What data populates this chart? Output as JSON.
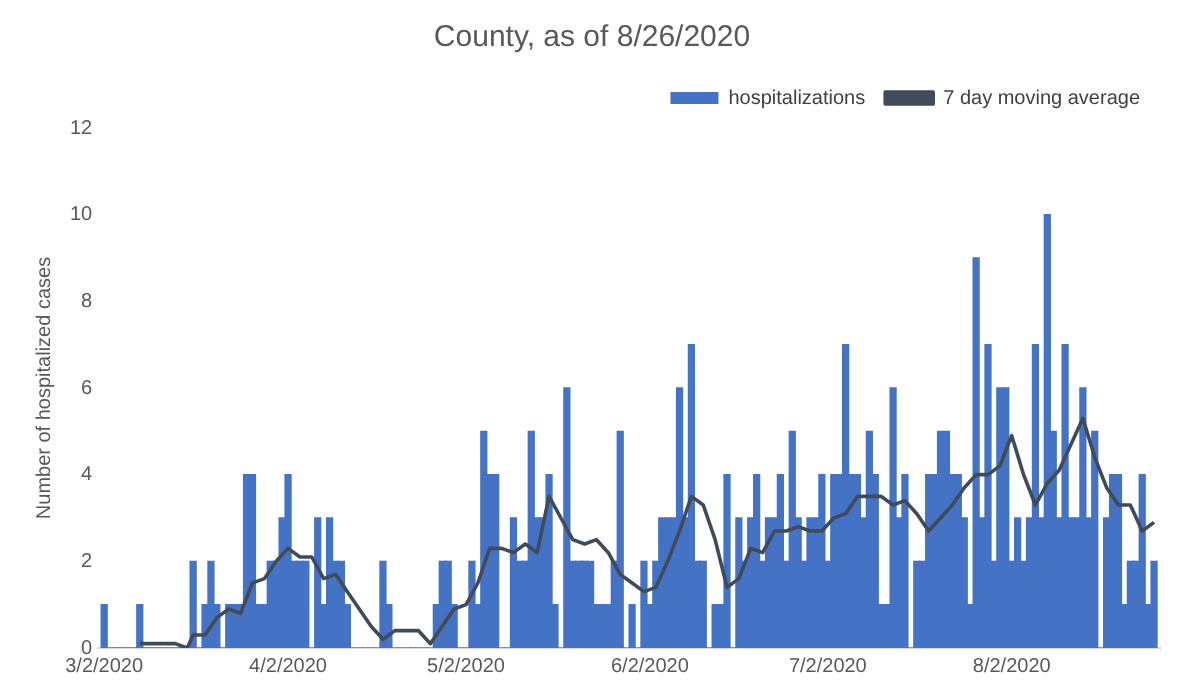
{
  "chart_data": {
    "type": "bar",
    "title": "County, as of 8/26/2020",
    "ylabel": "Number of hospitalized cases",
    "x": [
      "2020-03-02",
      "2020-03-03",
      "2020-03-04",
      "2020-03-05",
      "2020-03-06",
      "2020-03-07",
      "2020-03-08",
      "2020-03-09",
      "2020-03-10",
      "2020-03-11",
      "2020-03-12",
      "2020-03-13",
      "2020-03-14",
      "2020-03-15",
      "2020-03-16",
      "2020-03-17",
      "2020-03-18",
      "2020-03-19",
      "2020-03-20",
      "2020-03-21",
      "2020-03-22",
      "2020-03-23",
      "2020-03-24",
      "2020-03-25",
      "2020-03-26",
      "2020-03-27",
      "2020-03-28",
      "2020-03-29",
      "2020-03-30",
      "2020-03-31",
      "2020-04-01",
      "2020-04-02",
      "2020-04-03",
      "2020-04-04",
      "2020-04-05",
      "2020-04-06",
      "2020-04-07",
      "2020-04-08",
      "2020-04-09",
      "2020-04-10",
      "2020-04-11",
      "2020-04-12",
      "2020-04-13",
      "2020-04-14",
      "2020-04-15",
      "2020-04-16",
      "2020-04-17",
      "2020-04-18",
      "2020-04-19",
      "2020-04-20",
      "2020-04-21",
      "2020-04-22",
      "2020-04-23",
      "2020-04-24",
      "2020-04-25",
      "2020-04-26",
      "2020-04-27",
      "2020-04-28",
      "2020-04-29",
      "2020-04-30",
      "2020-05-01",
      "2020-05-02",
      "2020-05-03",
      "2020-05-04",
      "2020-05-05",
      "2020-05-06",
      "2020-05-07",
      "2020-05-08",
      "2020-05-09",
      "2020-05-10",
      "2020-05-11",
      "2020-05-12",
      "2020-05-13",
      "2020-05-14",
      "2020-05-15",
      "2020-05-16",
      "2020-05-17",
      "2020-05-18",
      "2020-05-19",
      "2020-05-20",
      "2020-05-21",
      "2020-05-22",
      "2020-05-23",
      "2020-05-24",
      "2020-05-25",
      "2020-05-26",
      "2020-05-27",
      "2020-05-28",
      "2020-05-29",
      "2020-05-30",
      "2020-05-31",
      "2020-06-01",
      "2020-06-02",
      "2020-06-03",
      "2020-06-04",
      "2020-06-05",
      "2020-06-06",
      "2020-06-07",
      "2020-06-08",
      "2020-06-09",
      "2020-06-10",
      "2020-06-11",
      "2020-06-12",
      "2020-06-13",
      "2020-06-14",
      "2020-06-15",
      "2020-06-16",
      "2020-06-17",
      "2020-06-18",
      "2020-06-19",
      "2020-06-20",
      "2020-06-21",
      "2020-06-22",
      "2020-06-23",
      "2020-06-24",
      "2020-06-25",
      "2020-06-26",
      "2020-06-27",
      "2020-06-28",
      "2020-06-29",
      "2020-06-30",
      "2020-07-01",
      "2020-07-02",
      "2020-07-03",
      "2020-07-04",
      "2020-07-05",
      "2020-07-06",
      "2020-07-07",
      "2020-07-08",
      "2020-07-09",
      "2020-07-10",
      "2020-07-11",
      "2020-07-12",
      "2020-07-13",
      "2020-07-14",
      "2020-07-15",
      "2020-07-16",
      "2020-07-17",
      "2020-07-18",
      "2020-07-19",
      "2020-07-20",
      "2020-07-21",
      "2020-07-22",
      "2020-07-23",
      "2020-07-24",
      "2020-07-25",
      "2020-07-26",
      "2020-07-27",
      "2020-07-28",
      "2020-07-29",
      "2020-07-30",
      "2020-07-31",
      "2020-08-01",
      "2020-08-02",
      "2020-08-03",
      "2020-08-04",
      "2020-08-05",
      "2020-08-06",
      "2020-08-07",
      "2020-08-08",
      "2020-08-09",
      "2020-08-10",
      "2020-08-11",
      "2020-08-12",
      "2020-08-13",
      "2020-08-14",
      "2020-08-15",
      "2020-08-16",
      "2020-08-17",
      "2020-08-18",
      "2020-08-19",
      "2020-08-20",
      "2020-08-21",
      "2020-08-22",
      "2020-08-23",
      "2020-08-24",
      "2020-08-25",
      "2020-08-26"
    ],
    "series": [
      {
        "name": "hospitalizations",
        "color": "#4472c4",
        "values": [
          1,
          0,
          0,
          0,
          0,
          0,
          1,
          0,
          0,
          0,
          0,
          0,
          0,
          0,
          0,
          2,
          0,
          1,
          2,
          1,
          0,
          1,
          1,
          1,
          4,
          4,
          1,
          1,
          2,
          2,
          3,
          4,
          2,
          2,
          2,
          0,
          3,
          1,
          3,
          2,
          2,
          1,
          0,
          0,
          0,
          0,
          0,
          2,
          1,
          0,
          0,
          0,
          0,
          0,
          0,
          0,
          1,
          2,
          2,
          1,
          0,
          0,
          2,
          1,
          5,
          4,
          4,
          0,
          0,
          3,
          2,
          2,
          5,
          3,
          3,
          4,
          1,
          0,
          6,
          2,
          2,
          2,
          2,
          1,
          1,
          1,
          2,
          5,
          0,
          1,
          0,
          2,
          1,
          2,
          3,
          3,
          3,
          6,
          3,
          7,
          2,
          2,
          0,
          1,
          1,
          4,
          0,
          3,
          2,
          3,
          4,
          2,
          3,
          3,
          4,
          2,
          5,
          3,
          2,
          3,
          3,
          4,
          2,
          4,
          4,
          7,
          4,
          4,
          3,
          5,
          4,
          1,
          1,
          6,
          3,
          4,
          0,
          2,
          2,
          4,
          4,
          5,
          5,
          4,
          4,
          3,
          1,
          9,
          3,
          7,
          2,
          6,
          6,
          2,
          3,
          2,
          3,
          7,
          3,
          10,
          5,
          3,
          7,
          3,
          3,
          6,
          3,
          5,
          0,
          3,
          4,
          4,
          1,
          2,
          2,
          4,
          1,
          2
        ]
      },
      {
        "name": "7 day moving average",
        "type": "line",
        "color": "#404b5a",
        "marker": "none",
        "x": [
          "2020-03-08",
          "2020-03-11",
          "2020-03-14",
          "2020-03-16",
          "2020-03-17",
          "2020-03-19",
          "2020-03-21",
          "2020-03-23",
          "2020-03-25",
          "2020-03-27",
          "2020-03-29",
          "2020-03-31",
          "2020-04-02",
          "2020-04-04",
          "2020-04-06",
          "2020-04-08",
          "2020-04-10",
          "2020-04-12",
          "2020-04-14",
          "2020-04-16",
          "2020-04-18",
          "2020-04-20",
          "2020-04-22",
          "2020-04-24",
          "2020-04-26",
          "2020-04-28",
          "2020-04-30",
          "2020-05-02",
          "2020-05-04",
          "2020-05-06",
          "2020-05-08",
          "2020-05-10",
          "2020-05-12",
          "2020-05-14",
          "2020-05-16",
          "2020-05-18",
          "2020-05-20",
          "2020-05-22",
          "2020-05-24",
          "2020-05-26",
          "2020-05-28",
          "2020-05-30",
          "2020-06-01",
          "2020-06-03",
          "2020-06-05",
          "2020-06-07",
          "2020-06-09",
          "2020-06-11",
          "2020-06-13",
          "2020-06-15",
          "2020-06-17",
          "2020-06-19",
          "2020-06-21",
          "2020-06-23",
          "2020-06-25",
          "2020-06-27",
          "2020-06-29",
          "2020-07-01",
          "2020-07-03",
          "2020-07-05",
          "2020-07-07",
          "2020-07-09",
          "2020-07-11",
          "2020-07-13",
          "2020-07-15",
          "2020-07-17",
          "2020-07-19",
          "2020-07-21",
          "2020-07-23",
          "2020-07-25",
          "2020-07-27",
          "2020-07-29",
          "2020-07-31",
          "2020-08-02",
          "2020-08-04",
          "2020-08-06",
          "2020-08-08",
          "2020-08-10",
          "2020-08-12",
          "2020-08-14",
          "2020-08-16",
          "2020-08-18",
          "2020-08-20",
          "2020-08-22",
          "2020-08-24",
          "2020-08-26"
        ],
        "values": [
          0.1,
          0.1,
          0.1,
          0,
          0.3,
          0.3,
          0.7,
          0.9,
          0.8,
          1.5,
          1.6,
          2.0,
          2.3,
          2.1,
          2.1,
          1.6,
          1.7,
          1.3,
          0.9,
          0.5,
          0.2,
          0.4,
          0.4,
          0.4,
          0.1,
          0.5,
          0.9,
          1.0,
          1.5,
          2.3,
          2.3,
          2.2,
          2.4,
          2.2,
          3.5,
          3.0,
          2.5,
          2.4,
          2.5,
          2.2,
          1.7,
          1.5,
          1.3,
          1.4,
          2.0,
          2.7,
          3.5,
          3.3,
          2.5,
          1.4,
          1.6,
          2.3,
          2.2,
          2.7,
          2.7,
          2.8,
          2.7,
          2.7,
          3.0,
          3.1,
          3.5,
          3.5,
          3.5,
          3.3,
          3.4,
          3.1,
          2.7,
          3.0,
          3.3,
          3.7,
          4.0,
          4.0,
          4.2,
          4.9,
          4.0,
          3.3,
          3.8,
          4.1,
          4.7,
          5.3,
          4.4,
          3.7,
          3.3,
          3.3,
          2.7,
          2.9
        ]
      }
    ],
    "xlim": [
      "2020-03-01",
      "2020-08-27"
    ],
    "xticks": [
      {
        "value": "2020-03-02",
        "label": "3/2/2020"
      },
      {
        "value": "2020-04-02",
        "label": "4/2/2020"
      },
      {
        "value": "2020-05-02",
        "label": "5/2/2020"
      },
      {
        "value": "2020-06-02",
        "label": "6/2/2020"
      },
      {
        "value": "2020-07-02",
        "label": "7/2/2020"
      },
      {
        "value": "2020-08-02",
        "label": "8/2/2020"
      }
    ],
    "ylim": [
      0,
      12
    ],
    "yticks": [
      0,
      2,
      4,
      6,
      8,
      10,
      12
    ],
    "legend": "top right"
  }
}
